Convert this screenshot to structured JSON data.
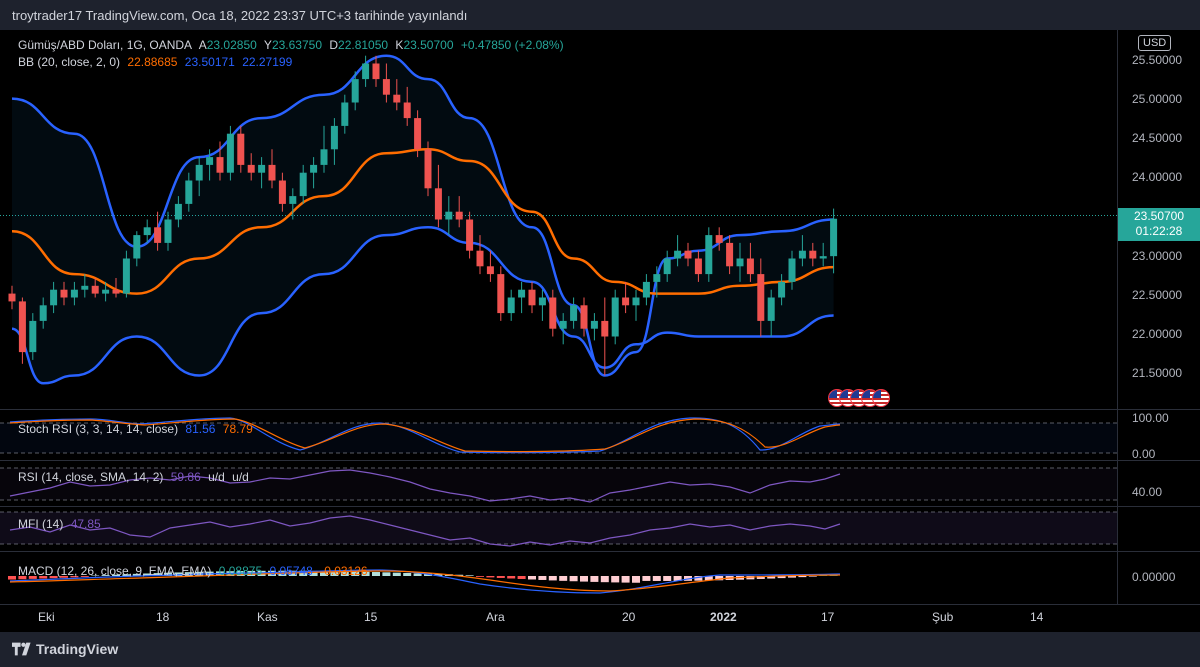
{
  "header": {
    "title": "troytrader17 TradingView.com, Oca 18, 2022 23:37 UTC+3 tarihinde yayınlandı"
  },
  "main_chart": {
    "symbol": "Gümüş/ABD Doları, 1G, OANDA",
    "ohlc": {
      "o_label": "A",
      "o": "23.02850",
      "h_label": "Y",
      "h": "23.63750",
      "l_label": "D",
      "l": "22.81050",
      "c_label": "K",
      "c": "23.50700",
      "change": "+0.47850 (+2.08%)"
    },
    "bb": {
      "label": "BB (20, close, 2, 0)",
      "basis": "22.88685",
      "upper": "23.50171",
      "lower": "22.27199"
    },
    "currency": "USD",
    "price_axis": [
      "25.50000",
      "25.00000",
      "24.50000",
      "24.00000",
      "23.00000",
      "22.50000",
      "22.00000",
      "21.50000"
    ],
    "last_price": "23.50700",
    "countdown": "01:22:28"
  },
  "stoch_rsi": {
    "label": "Stoch RSI (3, 3, 14, 14, close)",
    "k": "81.56",
    "d": "78.79",
    "axis": [
      "100.00",
      "0.00"
    ]
  },
  "rsi": {
    "label": "RSI (14, close, SMA, 14, 2)",
    "value": "59.86",
    "extra1": "u/d",
    "extra2": "u/d",
    "axis": [
      "40.00"
    ]
  },
  "mfi": {
    "label": "MFI (14)",
    "value": "47.85"
  },
  "macd": {
    "label": "MACD (12, 26, close, 9, EMA, EMA)",
    "hist": "0.08875",
    "macd": "0.05748",
    "signal": "-0.03126",
    "axis": [
      "0.00000"
    ]
  },
  "time_axis": [
    "Eki",
    "18",
    "Kas",
    "15",
    "Ara",
    "20",
    "2022",
    "17",
    "Şub",
    "14"
  ],
  "footer": {
    "brand": "TradingView"
  },
  "colors": {
    "up": "#26a69a",
    "down": "#ef5350",
    "bb_band": "#2962ff",
    "bb_basis": "#ff6d00",
    "stoch_k": "#2962ff",
    "stoch_d": "#ff6d00",
    "rsi": "#7e57c2",
    "macd": "#2962ff",
    "signal": "#ff6d00"
  },
  "chart_data": {
    "type": "candlestick",
    "dates": [
      "Eki",
      "18",
      "Kas",
      "15",
      "Ara",
      "20",
      "2022",
      "17"
    ],
    "ohlc": [
      [
        22.55,
        22.65,
        22.35,
        22.45
      ],
      [
        22.45,
        22.5,
        21.65,
        21.8
      ],
      [
        21.8,
        22.3,
        21.7,
        22.2
      ],
      [
        22.2,
        22.5,
        22.1,
        22.4
      ],
      [
        22.4,
        22.7,
        22.3,
        22.6
      ],
      [
        22.6,
        22.7,
        22.4,
        22.5
      ],
      [
        22.5,
        22.7,
        22.4,
        22.6
      ],
      [
        22.6,
        22.8,
        22.5,
        22.65
      ],
      [
        22.65,
        22.75,
        22.5,
        22.55
      ],
      [
        22.55,
        22.7,
        22.45,
        22.6
      ],
      [
        22.6,
        22.75,
        22.5,
        22.55
      ],
      [
        22.55,
        23.1,
        22.5,
        23.0
      ],
      [
        23.0,
        23.35,
        22.9,
        23.3
      ],
      [
        23.3,
        23.5,
        23.2,
        23.4
      ],
      [
        23.4,
        23.6,
        23.1,
        23.2
      ],
      [
        23.2,
        23.6,
        23.1,
        23.5
      ],
      [
        23.5,
        23.8,
        23.4,
        23.7
      ],
      [
        23.7,
        24.1,
        23.6,
        24.0
      ],
      [
        24.0,
        24.3,
        23.8,
        24.2
      ],
      [
        24.2,
        24.4,
        24.0,
        24.3
      ],
      [
        24.3,
        24.5,
        24.0,
        24.1
      ],
      [
        24.1,
        24.7,
        24.0,
        24.6
      ],
      [
        24.6,
        24.7,
        24.1,
        24.2
      ],
      [
        24.2,
        24.35,
        24.0,
        24.1
      ],
      [
        24.1,
        24.3,
        23.9,
        24.2
      ],
      [
        24.2,
        24.4,
        23.9,
        24.0
      ],
      [
        24.0,
        24.1,
        23.6,
        23.7
      ],
      [
        23.7,
        23.9,
        23.5,
        23.8
      ],
      [
        23.8,
        24.2,
        23.7,
        24.1
      ],
      [
        24.1,
        24.3,
        23.9,
        24.2
      ],
      [
        24.2,
        24.7,
        24.1,
        24.4
      ],
      [
        24.4,
        24.8,
        24.2,
        24.7
      ],
      [
        24.7,
        25.1,
        24.6,
        25.0
      ],
      [
        25.0,
        25.4,
        24.9,
        25.3
      ],
      [
        25.3,
        25.6,
        25.2,
        25.5
      ],
      [
        25.5,
        25.6,
        25.2,
        25.3
      ],
      [
        25.3,
        25.5,
        25.0,
        25.1
      ],
      [
        25.1,
        25.3,
        24.9,
        25.0
      ],
      [
        25.0,
        25.2,
        24.7,
        24.8
      ],
      [
        24.8,
        24.9,
        24.3,
        24.4
      ],
      [
        24.4,
        24.5,
        23.8,
        23.9
      ],
      [
        23.9,
        24.2,
        23.4,
        23.5
      ],
      [
        23.5,
        23.8,
        23.3,
        23.6
      ],
      [
        23.6,
        23.8,
        23.4,
        23.5
      ],
      [
        23.5,
        23.6,
        23.0,
        23.1
      ],
      [
        23.1,
        23.3,
        22.8,
        22.9
      ],
      [
        22.9,
        23.1,
        22.7,
        22.8
      ],
      [
        22.8,
        22.9,
        22.2,
        22.3
      ],
      [
        22.3,
        22.6,
        22.2,
        22.5
      ],
      [
        22.5,
        22.7,
        22.3,
        22.6
      ],
      [
        22.6,
        22.7,
        22.3,
        22.4
      ],
      [
        22.4,
        22.6,
        22.2,
        22.5
      ],
      [
        22.5,
        22.6,
        22.0,
        22.1
      ],
      [
        22.1,
        22.3,
        21.9,
        22.2
      ],
      [
        22.2,
        22.5,
        22.1,
        22.4
      ],
      [
        22.4,
        22.5,
        22.0,
        22.1
      ],
      [
        22.1,
        22.3,
        21.95,
        22.2
      ],
      [
        22.2,
        22.5,
        21.5,
        22.0
      ],
      [
        22.0,
        22.6,
        21.9,
        22.5
      ],
      [
        22.5,
        22.7,
        22.3,
        22.4
      ],
      [
        22.4,
        22.6,
        22.2,
        22.5
      ],
      [
        22.5,
        22.8,
        22.4,
        22.7
      ],
      [
        22.7,
        22.9,
        22.5,
        22.8
      ],
      [
        22.8,
        23.1,
        22.7,
        23.0
      ],
      [
        23.0,
        23.3,
        22.9,
        23.1
      ],
      [
        23.1,
        23.2,
        22.9,
        23.0
      ],
      [
        23.0,
        23.1,
        22.7,
        22.8
      ],
      [
        22.8,
        23.4,
        22.7,
        23.3
      ],
      [
        23.3,
        23.4,
        23.1,
        23.2
      ],
      [
        23.2,
        23.3,
        22.8,
        22.9
      ],
      [
        22.9,
        23.2,
        22.7,
        23.0
      ],
      [
        23.0,
        23.2,
        22.7,
        22.8
      ],
      [
        22.8,
        23.0,
        22.0,
        22.2
      ],
      [
        22.2,
        22.6,
        22.0,
        22.5
      ],
      [
        22.5,
        22.8,
        22.4,
        22.7
      ],
      [
        22.7,
        23.1,
        22.6,
        23.0
      ],
      [
        23.0,
        23.3,
        22.9,
        23.1
      ],
      [
        23.1,
        23.2,
        22.9,
        23.0
      ],
      [
        23.0,
        23.2,
        22.9,
        23.03
      ],
      [
        23.03,
        23.64,
        22.81,
        23.51
      ]
    ],
    "bb_upper_points": [
      [
        0,
        25.05
      ],
      [
        6,
        24.6
      ],
      [
        12,
        23.15
      ],
      [
        18,
        24.3
      ],
      [
        24,
        24.8
      ],
      [
        30,
        25.1
      ],
      [
        36,
        25.6
      ],
      [
        40,
        25.3
      ],
      [
        44,
        24.8
      ],
      [
        50,
        23.4
      ],
      [
        54,
        22.4
      ],
      [
        57,
        21.5
      ],
      [
        60,
        21.8
      ],
      [
        63,
        23.0
      ],
      [
        66,
        23.1
      ],
      [
        70,
        23.3
      ],
      [
        74,
        23.35
      ],
      [
        79,
        23.5
      ]
    ],
    "bb_basis_points": [
      [
        0,
        23.35
      ],
      [
        6,
        22.8
      ],
      [
        12,
        22.55
      ],
      [
        18,
        23.0
      ],
      [
        24,
        23.4
      ],
      [
        30,
        23.8
      ],
      [
        36,
        24.35
      ],
      [
        40,
        24.4
      ],
      [
        44,
        24.25
      ],
      [
        50,
        23.6
      ],
      [
        54,
        23.0
      ],
      [
        58,
        22.7
      ],
      [
        62,
        22.55
      ],
      [
        66,
        22.55
      ],
      [
        70,
        22.65
      ],
      [
        74,
        22.7
      ],
      [
        79,
        22.89
      ]
    ],
    "bb_lower_points": [
      [
        0,
        22.1
      ],
      [
        3,
        21.4
      ],
      [
        6,
        21.5
      ],
      [
        12,
        22.0
      ],
      [
        18,
        21.5
      ],
      [
        24,
        22.3
      ],
      [
        30,
        22.8
      ],
      [
        36,
        23.3
      ],
      [
        40,
        23.4
      ],
      [
        44,
        23.2
      ],
      [
        50,
        22.7
      ],
      [
        54,
        22.0
      ],
      [
        57,
        21.6
      ],
      [
        60,
        21.9
      ],
      [
        63,
        22.05
      ],
      [
        66,
        22.0
      ],
      [
        70,
        22.0
      ],
      [
        74,
        22.0
      ],
      [
        79,
        22.27
      ]
    ]
  }
}
